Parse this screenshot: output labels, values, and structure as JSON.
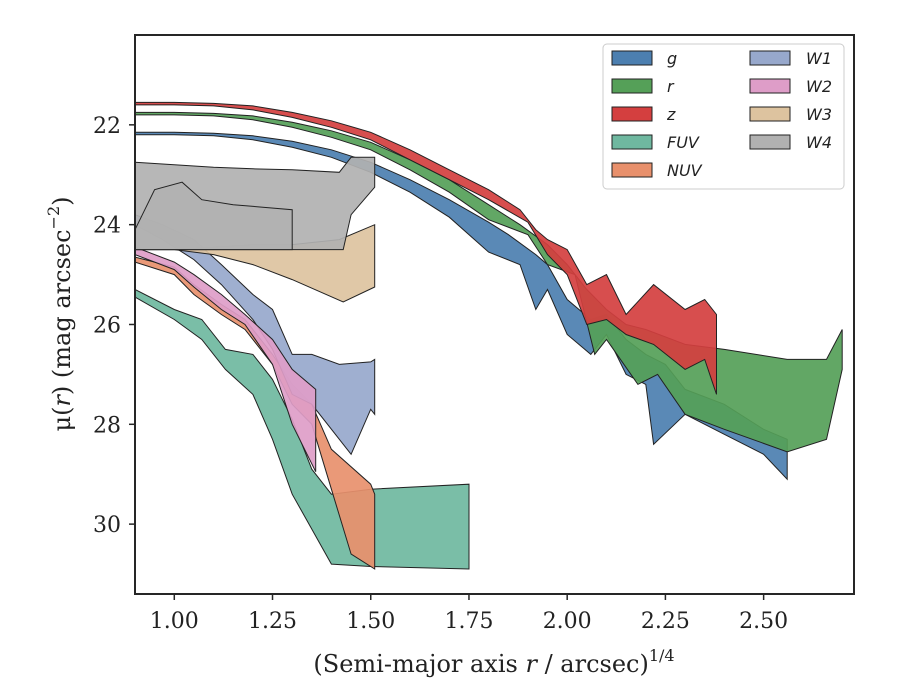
{
  "chart_data": {
    "type": "area",
    "xlabel": "(Semi-major axis r / arcsec)^{1/4}",
    "xlabel_parts": {
      "main": "(Semi-major axis ",
      "var": "r",
      "rest": " / arcsec)",
      "sup": "1/4"
    },
    "ylabel": "μ(r) (mag arcsec^{−2})",
    "ylabel_parts": {
      "mu": "μ(",
      "var": "r",
      "mid": ") (mag arcsec",
      "sup": "−2",
      "end": ")"
    },
    "xlim": [
      0.9,
      2.73
    ],
    "ylim": [
      31.4,
      20.2
    ],
    "y_inverted": true,
    "xticks": [
      1.0,
      1.25,
      1.5,
      1.75,
      2.0,
      2.25,
      2.5
    ],
    "xtick_labels": [
      "1.00",
      "1.25",
      "1.50",
      "1.75",
      "2.00",
      "2.25",
      "2.50"
    ],
    "yticks": [
      22,
      24,
      26,
      28,
      30
    ],
    "ytick_labels": [
      "22",
      "24",
      "26",
      "28",
      "30"
    ],
    "legend": {
      "location": "upper right",
      "columns": 2
    },
    "series": [
      {
        "name": "g",
        "color": "#4c7fb0",
        "upper": [
          [
            0.9,
            22.15
          ],
          [
            1.0,
            22.15
          ],
          [
            1.1,
            22.17
          ],
          [
            1.2,
            22.22
          ],
          [
            1.3,
            22.33
          ],
          [
            1.4,
            22.5
          ],
          [
            1.5,
            22.75
          ],
          [
            1.6,
            23.1
          ],
          [
            1.7,
            23.5
          ],
          [
            1.8,
            23.95
          ],
          [
            1.85,
            24.2
          ],
          [
            1.92,
            24.6
          ],
          [
            1.95,
            24.8
          ],
          [
            2.0,
            25.5
          ],
          [
            2.06,
            25.9
          ],
          [
            2.1,
            25.8
          ],
          [
            2.15,
            26.3
          ],
          [
            2.2,
            26.6
          ],
          [
            2.25,
            26.8
          ],
          [
            2.3,
            27.3
          ],
          [
            2.4,
            27.6
          ],
          [
            2.5,
            28.1
          ],
          [
            2.56,
            28.3
          ]
        ],
        "lower": [
          [
            0.9,
            22.2
          ],
          [
            1.0,
            22.2
          ],
          [
            1.1,
            22.22
          ],
          [
            1.2,
            22.3
          ],
          [
            1.3,
            22.45
          ],
          [
            1.4,
            22.65
          ],
          [
            1.5,
            22.95
          ],
          [
            1.6,
            23.35
          ],
          [
            1.7,
            23.85
          ],
          [
            1.8,
            24.55
          ],
          [
            1.88,
            24.8
          ],
          [
            1.92,
            25.7
          ],
          [
            1.95,
            25.3
          ],
          [
            2.0,
            26.2
          ],
          [
            2.06,
            26.6
          ],
          [
            2.1,
            26.2
          ],
          [
            2.15,
            27.0
          ],
          [
            2.2,
            27.2
          ],
          [
            2.22,
            28.4
          ],
          [
            2.3,
            27.8
          ],
          [
            2.4,
            28.2
          ],
          [
            2.5,
            28.6
          ],
          [
            2.56,
            29.1
          ]
        ]
      },
      {
        "name": "r",
        "color": "#55a058",
        "upper": [
          [
            0.9,
            21.75
          ],
          [
            1.0,
            21.75
          ],
          [
            1.1,
            21.77
          ],
          [
            1.2,
            21.82
          ],
          [
            1.3,
            21.95
          ],
          [
            1.4,
            22.12
          ],
          [
            1.5,
            22.35
          ],
          [
            1.6,
            22.7
          ],
          [
            1.7,
            23.1
          ],
          [
            1.8,
            23.6
          ],
          [
            1.88,
            24.0
          ],
          [
            1.95,
            24.4
          ],
          [
            2.0,
            24.8
          ],
          [
            2.05,
            25.3
          ],
          [
            2.1,
            25.7
          ],
          [
            2.15,
            26.0
          ],
          [
            2.2,
            26.1
          ],
          [
            2.3,
            26.4
          ],
          [
            2.4,
            26.5
          ],
          [
            2.56,
            26.7
          ],
          [
            2.66,
            26.7
          ],
          [
            2.7,
            26.1
          ]
        ],
        "lower": [
          [
            0.9,
            21.8
          ],
          [
            1.0,
            21.8
          ],
          [
            1.1,
            21.82
          ],
          [
            1.2,
            21.9
          ],
          [
            1.3,
            22.05
          ],
          [
            1.4,
            22.25
          ],
          [
            1.5,
            22.5
          ],
          [
            1.6,
            22.9
          ],
          [
            1.7,
            23.35
          ],
          [
            1.8,
            23.9
          ],
          [
            1.9,
            24.2
          ],
          [
            1.95,
            24.8
          ],
          [
            2.02,
            25.0
          ],
          [
            2.07,
            26.6
          ],
          [
            2.1,
            26.3
          ],
          [
            2.18,
            27.2
          ],
          [
            2.23,
            27.0
          ],
          [
            2.3,
            27.8
          ],
          [
            2.4,
            28.1
          ],
          [
            2.56,
            28.55
          ],
          [
            2.66,
            28.3
          ],
          [
            2.7,
            26.9
          ]
        ]
      },
      {
        "name": "z",
        "color": "#d43f3f",
        "upper": [
          [
            0.9,
            21.55
          ],
          [
            1.0,
            21.55
          ],
          [
            1.1,
            21.57
          ],
          [
            1.2,
            21.62
          ],
          [
            1.3,
            21.75
          ],
          [
            1.4,
            21.92
          ],
          [
            1.5,
            22.15
          ],
          [
            1.6,
            22.5
          ],
          [
            1.7,
            22.9
          ],
          [
            1.8,
            23.3
          ],
          [
            1.88,
            23.7
          ],
          [
            1.92,
            24.1
          ],
          [
            1.95,
            24.3
          ],
          [
            2.0,
            24.5
          ],
          [
            2.05,
            25.2
          ],
          [
            2.1,
            25.0
          ],
          [
            2.15,
            25.8
          ],
          [
            2.22,
            25.2
          ],
          [
            2.3,
            25.7
          ],
          [
            2.35,
            25.5
          ],
          [
            2.38,
            25.8
          ]
        ],
        "lower": [
          [
            0.9,
            21.6
          ],
          [
            1.0,
            21.6
          ],
          [
            1.1,
            21.62
          ],
          [
            1.2,
            21.7
          ],
          [
            1.3,
            21.85
          ],
          [
            1.4,
            22.05
          ],
          [
            1.5,
            22.3
          ],
          [
            1.6,
            22.7
          ],
          [
            1.7,
            23.1
          ],
          [
            1.8,
            23.5
          ],
          [
            1.9,
            23.95
          ],
          [
            1.95,
            24.6
          ],
          [
            2.0,
            25.0
          ],
          [
            2.05,
            26.0
          ],
          [
            2.1,
            25.9
          ],
          [
            2.15,
            26.2
          ],
          [
            2.22,
            26.4
          ],
          [
            2.3,
            26.9
          ],
          [
            2.35,
            26.7
          ],
          [
            2.38,
            27.4
          ]
        ]
      },
      {
        "name": "FUV",
        "color": "#6fb8a0",
        "upper": [
          [
            0.9,
            25.3
          ],
          [
            1.0,
            25.7
          ],
          [
            1.07,
            25.9
          ],
          [
            1.13,
            26.5
          ],
          [
            1.2,
            26.6
          ],
          [
            1.25,
            27.1
          ],
          [
            1.3,
            27.9
          ],
          [
            1.35,
            28.9
          ],
          [
            1.4,
            29.4
          ],
          [
            1.5,
            29.3
          ],
          [
            1.75,
            29.2
          ]
        ],
        "lower": [
          [
            0.9,
            25.45
          ],
          [
            1.0,
            25.9
          ],
          [
            1.07,
            26.3
          ],
          [
            1.13,
            26.9
          ],
          [
            1.2,
            27.4
          ],
          [
            1.25,
            28.3
          ],
          [
            1.3,
            29.4
          ],
          [
            1.35,
            30.1
          ],
          [
            1.4,
            30.8
          ],
          [
            1.5,
            30.85
          ],
          [
            1.75,
            30.9
          ]
        ]
      },
      {
        "name": "NUV",
        "color": "#e8906c",
        "upper": [
          [
            0.9,
            24.65
          ],
          [
            1.0,
            24.85
          ],
          [
            1.05,
            25.2
          ],
          [
            1.12,
            25.6
          ],
          [
            1.18,
            25.9
          ],
          [
            1.25,
            26.6
          ],
          [
            1.3,
            27.2
          ],
          [
            1.35,
            27.6
          ],
          [
            1.4,
            28.5
          ],
          [
            1.5,
            29.2
          ],
          [
            1.51,
            29.4
          ]
        ],
        "lower": [
          [
            0.9,
            24.75
          ],
          [
            1.0,
            25.0
          ],
          [
            1.05,
            25.4
          ],
          [
            1.12,
            25.8
          ],
          [
            1.18,
            26.1
          ],
          [
            1.25,
            26.8
          ],
          [
            1.3,
            27.6
          ],
          [
            1.35,
            28.0
          ],
          [
            1.4,
            29.3
          ],
          [
            1.45,
            30.6
          ],
          [
            1.51,
            30.9
          ]
        ]
      },
      {
        "name": "W1",
        "color": "#97a8cc",
        "upper": [
          [
            0.9,
            23.8
          ],
          [
            0.97,
            24.0
          ],
          [
            1.05,
            24.3
          ],
          [
            1.12,
            24.8
          ],
          [
            1.2,
            25.4
          ],
          [
            1.25,
            25.7
          ],
          [
            1.3,
            26.6
          ],
          [
            1.35,
            26.6
          ],
          [
            1.42,
            26.8
          ],
          [
            1.5,
            26.75
          ],
          [
            1.51,
            26.7
          ]
        ],
        "lower": [
          [
            0.9,
            24.0
          ],
          [
            0.97,
            24.3
          ],
          [
            1.05,
            24.7
          ],
          [
            1.12,
            25.2
          ],
          [
            1.2,
            25.9
          ],
          [
            1.25,
            26.5
          ],
          [
            1.3,
            27.4
          ],
          [
            1.35,
            27.6
          ],
          [
            1.45,
            28.6
          ],
          [
            1.5,
            27.7
          ],
          [
            1.51,
            27.8
          ]
        ]
      },
      {
        "name": "W2",
        "color": "#de9dc8",
        "upper": [
          [
            0.9,
            24.45
          ],
          [
            1.0,
            24.75
          ],
          [
            1.05,
            25.0
          ],
          [
            1.12,
            25.4
          ],
          [
            1.18,
            25.8
          ],
          [
            1.25,
            26.3
          ],
          [
            1.3,
            26.9
          ],
          [
            1.36,
            27.3
          ]
        ],
        "lower": [
          [
            0.9,
            24.6
          ],
          [
            1.0,
            24.9
          ],
          [
            1.05,
            25.25
          ],
          [
            1.12,
            25.7
          ],
          [
            1.18,
            26.0
          ],
          [
            1.25,
            26.8
          ],
          [
            1.3,
            28.0
          ],
          [
            1.36,
            28.95
          ]
        ]
      },
      {
        "name": "W3",
        "color": "#ddc39f",
        "upper": [
          [
            0.9,
            24.5
          ],
          [
            1.0,
            24.5
          ],
          [
            1.1,
            24.45
          ],
          [
            1.2,
            24.4
          ],
          [
            1.3,
            24.4
          ],
          [
            1.42,
            24.3
          ],
          [
            1.51,
            24.0
          ]
        ],
        "lower": [
          [
            0.9,
            24.5
          ],
          [
            1.0,
            24.5
          ],
          [
            1.1,
            24.6
          ],
          [
            1.2,
            24.8
          ],
          [
            1.3,
            25.1
          ],
          [
            1.43,
            25.55
          ],
          [
            1.51,
            25.25
          ]
        ]
      },
      {
        "name": "W4",
        "color": "#b1b1b1",
        "upper": [
          [
            0.9,
            22.75
          ],
          [
            1.0,
            22.8
          ],
          [
            1.1,
            22.85
          ],
          [
            1.2,
            22.88
          ],
          [
            1.3,
            22.9
          ],
          [
            1.42,
            22.95
          ],
          [
            1.45,
            22.65
          ],
          [
            1.51,
            22.65
          ]
        ],
        "lower": [
          [
            0.9,
            24.5
          ],
          [
            1.0,
            24.5
          ],
          [
            1.1,
            24.5
          ],
          [
            1.2,
            24.5
          ],
          [
            1.3,
            24.5
          ],
          [
            1.43,
            24.5
          ],
          [
            1.45,
            23.8
          ],
          [
            1.51,
            23.25
          ]
        ],
        "tip_upper": [
          [
            0.9,
            24.1
          ],
          [
            0.95,
            23.3
          ],
          [
            1.02,
            23.15
          ],
          [
            1.07,
            23.5
          ],
          [
            1.15,
            23.6
          ],
          [
            1.3,
            23.7
          ]
        ]
      }
    ]
  }
}
